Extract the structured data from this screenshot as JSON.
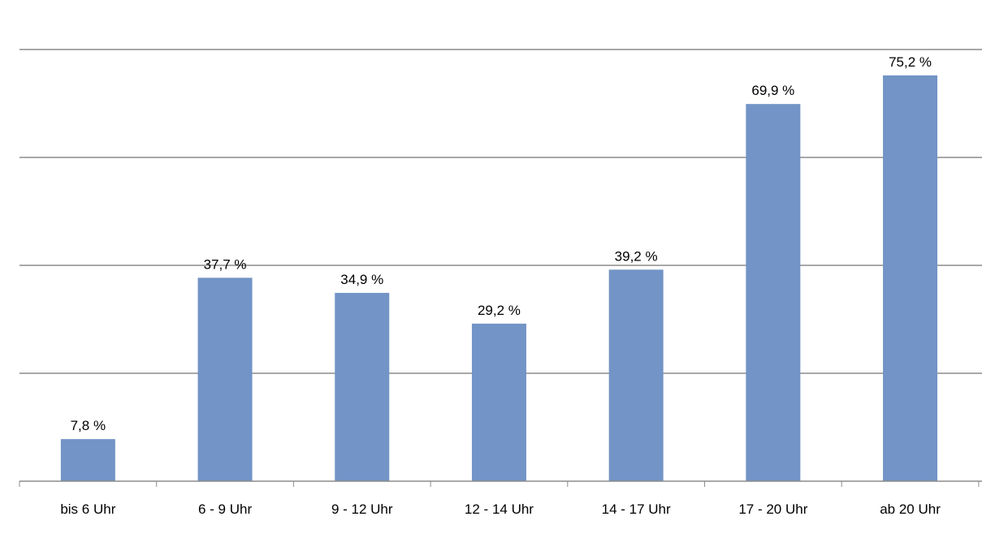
{
  "chart_data": {
    "type": "bar",
    "categories": [
      "bis 6 Uhr",
      "6 - 9 Uhr",
      "9 - 12 Uhr",
      "12 - 14 Uhr",
      "14 - 17 Uhr",
      "17 - 20 Uhr",
      "ab 20 Uhr"
    ],
    "values": [
      7.8,
      37.7,
      34.9,
      29.2,
      39.2,
      69.9,
      75.2
    ],
    "value_labels": [
      "7,8 %",
      "37,7 %",
      "34,9 %",
      "29,2 %",
      "39,2 %",
      "69,9 %",
      "75,2 %"
    ],
    "title": "",
    "xlabel": "",
    "ylabel": "",
    "ylim": [
      0,
      80
    ],
    "gridlines": [
      20,
      40,
      60,
      80
    ],
    "grid": true,
    "legend": "none",
    "colors": {
      "bar": "#7294c6",
      "grid": "#8c8c8c"
    }
  }
}
